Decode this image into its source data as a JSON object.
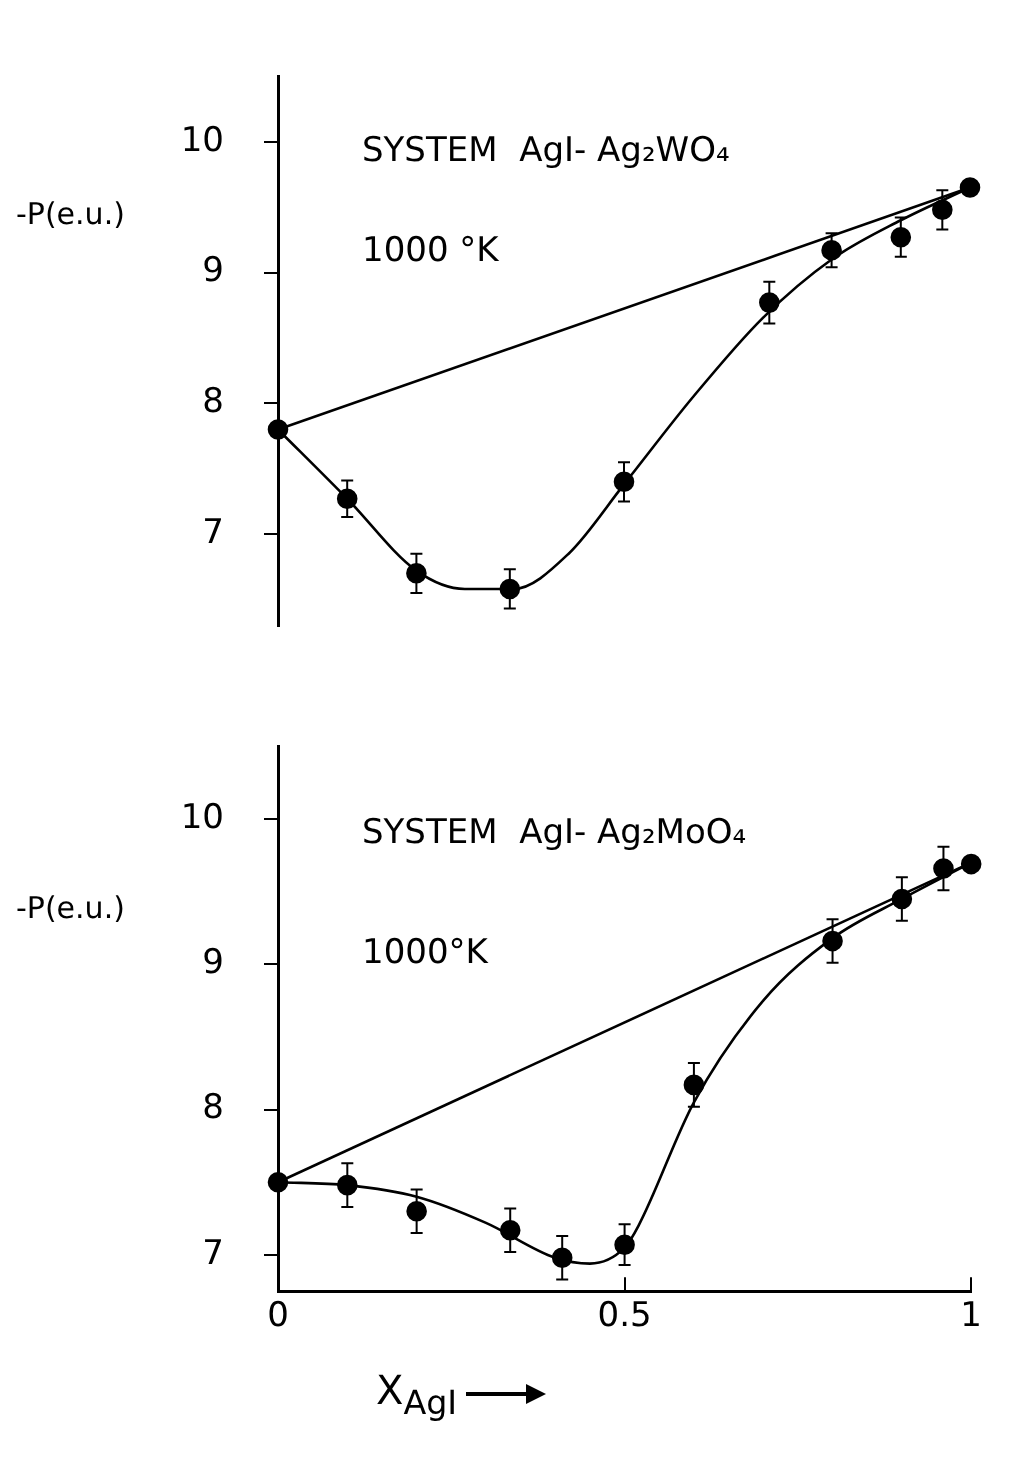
{
  "chart_data": [
    {
      "type": "line",
      "title": "SYSTEM  AgI- Ag₂WO₄",
      "ylabel": "-P(e.u.)",
      "annotations": [
        "1000 °K"
      ],
      "xlim": [
        0,
        1
      ],
      "ylim": [
        6.3,
        10.5
      ],
      "yticks": [
        7,
        8,
        9,
        10
      ],
      "tick_labels": "y",
      "grid": false,
      "legend": false,
      "series": [
        {
          "type": "scatter",
          "color": "#000000",
          "marker": "circle",
          "x": [
            0,
            0.1,
            0.2,
            0.335,
            0.5,
            0.71,
            0.8,
            0.9,
            0.96,
            1
          ],
          "values": [
            7.8,
            7.27,
            6.7,
            6.58,
            7.4,
            8.77,
            9.17,
            9.27,
            9.48,
            9.65
          ],
          "errors": [
            null,
            0.14,
            0.15,
            0.15,
            0.15,
            0.16,
            0.13,
            0.15,
            0.15,
            null
          ]
        },
        {
          "type": "line",
          "color": "#000000",
          "marker": "none",
          "x": [
            0,
            0.1,
            0.2,
            0.27,
            0.34,
            0.42,
            0.5,
            0.6,
            0.7,
            0.8,
            0.9,
            1
          ],
          "values": [
            7.8,
            7.27,
            6.72,
            6.58,
            6.58,
            6.85,
            7.38,
            8.05,
            8.65,
            9.1,
            9.4,
            9.65
          ]
        },
        {
          "type": "line",
          "color": "#000000",
          "marker": "none",
          "x": [
            0,
            1
          ],
          "values": [
            7.8,
            9.65
          ]
        }
      ]
    },
    {
      "type": "line",
      "title": "SYSTEM  AgI- Ag₂MoO₄",
      "ylabel": "-P(e.u.)",
      "xlabel": "X$_{AgI}$",
      "annotations": [
        "1000°K"
      ],
      "xlim": [
        0,
        1
      ],
      "xticks": [
        0,
        0.5,
        1
      ],
      "ylim": [
        6.75,
        10.5
      ],
      "yticks": [
        7,
        8,
        9,
        10
      ],
      "grid": false,
      "legend": false,
      "series": [
        {
          "type": "scatter",
          "color": "#000000",
          "marker": "circle",
          "x": [
            0,
            0.1,
            0.2,
            0.335,
            0.41,
            0.5,
            0.6,
            0.8,
            0.9,
            0.96,
            1
          ],
          "values": [
            7.5,
            7.48,
            7.3,
            7.17,
            6.98,
            7.07,
            8.17,
            9.16,
            9.45,
            9.66,
            9.69
          ],
          "errors": [
            null,
            0.15,
            0.15,
            0.15,
            0.15,
            0.14,
            0.15,
            0.15,
            0.15,
            0.15,
            null
          ]
        },
        {
          "type": "line",
          "color": "#000000",
          "marker": "none",
          "x": [
            0,
            0.1,
            0.2,
            0.3,
            0.4,
            0.45,
            0.5,
            0.52,
            0.6,
            0.7,
            0.8,
            0.9,
            1
          ],
          "values": [
            7.5,
            7.48,
            7.4,
            7.22,
            6.98,
            6.94,
            7.05,
            7.2,
            8.05,
            8.75,
            9.18,
            9.45,
            9.7
          ]
        },
        {
          "type": "line",
          "color": "#000000",
          "marker": "none",
          "x": [
            0,
            1
          ],
          "values": [
            7.5,
            9.7
          ]
        }
      ]
    }
  ]
}
